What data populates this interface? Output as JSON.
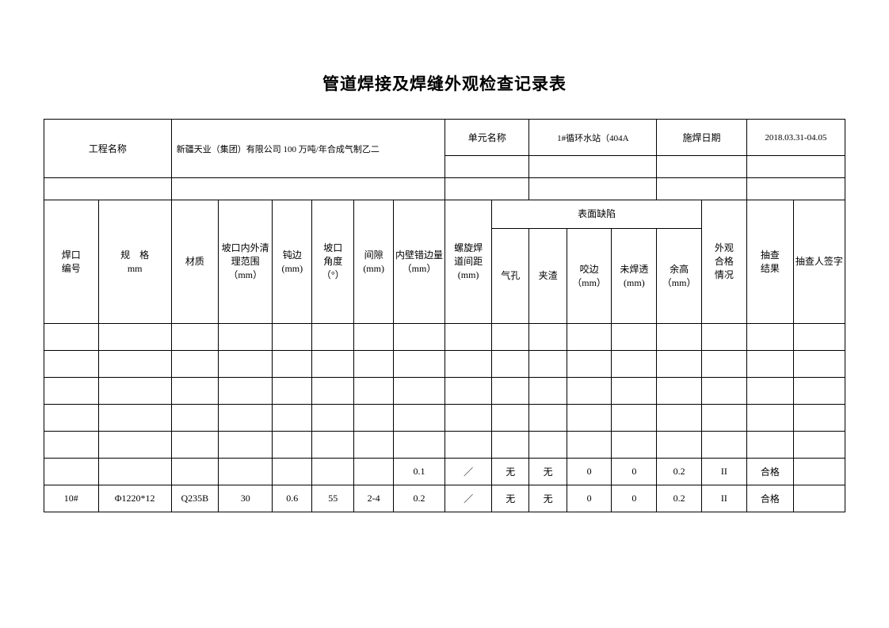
{
  "title": "管道焊接及焊缝外观检查记录表",
  "header": {
    "project_name_label": "工程名称",
    "project_name_value": "新疆天业（集团）有限公司 100 万吨/年合成气制乙二",
    "unit_name_label": "单元名称",
    "unit_name_value": "1#循环水站（404A",
    "weld_date_label": "施焊日期",
    "weld_date_value": "2018.03.31-04.05"
  },
  "columns": {
    "weld_no": "焊口\n编号",
    "spec": "规　格\nmm",
    "material": "材质",
    "groove_clean": "坡口内外清理范围（mm）",
    "blunt_edge": "钝边\n(mm)",
    "groove_angle": "坡口\n角度\n（°）",
    "gap": "间隙\n(mm)",
    "inner_misalign": "内壁错边量（mm）",
    "spiral_weld_gap": "螺旋焊\n道间距\n(mm)",
    "surface_defect": "表面缺陷",
    "porosity": "气孔",
    "slag": "夹渣",
    "undercut": "咬边（mm）",
    "incomplete": "未焊透(mm)",
    "reinforcement": "余高（mm）",
    "appearance": "外观\n合格\n情况",
    "spot_result": "抽查\n结果",
    "spot_sign": "抽查人签字"
  },
  "rows": [
    {
      "c0": "",
      "c1": "",
      "c2": "",
      "c3": "",
      "c4": "",
      "c5": "",
      "c6": "",
      "c7": "",
      "c8": "",
      "c9": "",
      "c10": "",
      "c11": "",
      "c12": "",
      "c13": "",
      "c14": "",
      "c15": "",
      "c16": ""
    },
    {
      "c0": "",
      "c1": "",
      "c2": "",
      "c3": "",
      "c4": "",
      "c5": "",
      "c6": "",
      "c7": "",
      "c8": "",
      "c9": "",
      "c10": "",
      "c11": "",
      "c12": "",
      "c13": "",
      "c14": "",
      "c15": "",
      "c16": ""
    },
    {
      "c0": "",
      "c1": "",
      "c2": "",
      "c3": "",
      "c4": "",
      "c5": "",
      "c6": "",
      "c7": "",
      "c8": "",
      "c9": "",
      "c10": "",
      "c11": "",
      "c12": "",
      "c13": "",
      "c14": "",
      "c15": "",
      "c16": ""
    },
    {
      "c0": "",
      "c1": "",
      "c2": "",
      "c3": "",
      "c4": "",
      "c5": "",
      "c6": "",
      "c7": "",
      "c8": "",
      "c9": "",
      "c10": "",
      "c11": "",
      "c12": "",
      "c13": "",
      "c14": "",
      "c15": "",
      "c16": ""
    },
    {
      "c0": "",
      "c1": "",
      "c2": "",
      "c3": "",
      "c4": "",
      "c5": "",
      "c6": "",
      "c7": "",
      "c8": "",
      "c9": "",
      "c10": "",
      "c11": "",
      "c12": "",
      "c13": "",
      "c14": "",
      "c15": "",
      "c16": ""
    },
    {
      "c0": "",
      "c1": "",
      "c2": "",
      "c3": "",
      "c4": "",
      "c5": "",
      "c6": "",
      "c7": "0.1",
      "c8": "／",
      "c9": "无",
      "c10": "无",
      "c11": "0",
      "c12": "0",
      "c13": "0.2",
      "c14": "II",
      "c15": "合格",
      "c16": ""
    },
    {
      "c0": "10#",
      "c1": "Φ1220*12",
      "c2": "Q235B",
      "c3": "30",
      "c4": "0.6",
      "c5": "55",
      "c6": "2-4",
      "c7": "0.2",
      "c8": "／",
      "c9": "无",
      "c10": "无",
      "c11": "0",
      "c12": "0",
      "c13": "0.2",
      "c14": "II",
      "c15": "合格",
      "c16": ""
    }
  ]
}
